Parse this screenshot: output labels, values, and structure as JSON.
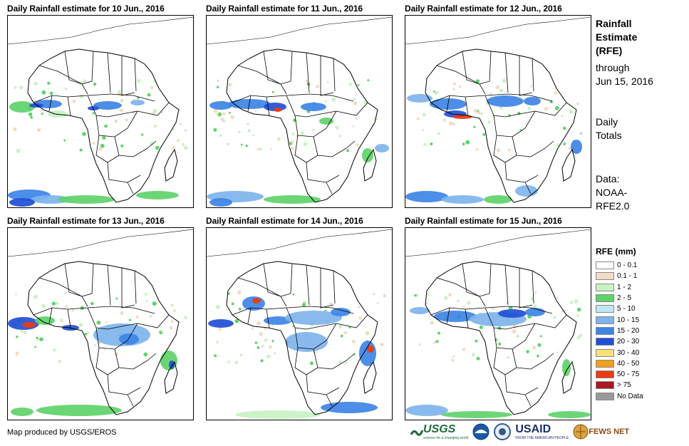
{
  "panels": [
    {
      "title": "Daily Rainfall estimate for 10 Jun., 2016"
    },
    {
      "title": "Daily Rainfall estimate for 11 Jun., 2016"
    },
    {
      "title": "Daily Rainfall estimate for 12 Jun., 2016"
    },
    {
      "title": "Daily Rainfall estimate for 13 Jun., 2016"
    },
    {
      "title": "Daily Rainfall estimate for 14 Jun., 2016"
    },
    {
      "title": "Daily Rainfall estimate for 15 Jun., 2016"
    }
  ],
  "sidebar": {
    "title_lines": [
      "Rainfall",
      "Estimate",
      "(RFE)"
    ],
    "through_label": "through",
    "through_date": "Jun 15, 2016",
    "daily_label": "Daily",
    "totals_label": "Totals",
    "data_label": "Data:",
    "data_source_1": "NOAA-",
    "data_source_2": "RFE2.0"
  },
  "legend": {
    "title": "RFE (mm)",
    "items": [
      {
        "label": "0 - 0.1",
        "color": "#ffffff"
      },
      {
        "label": "0.1 - 1",
        "color": "#f2dcc4"
      },
      {
        "label": "1 - 2",
        "color": "#c9f2c4"
      },
      {
        "label": "2 - 5",
        "color": "#5fd36a"
      },
      {
        "label": "5 - 10",
        "color": "#bfe8f6"
      },
      {
        "label": "10 - 15",
        "color": "#7fb4ec"
      },
      {
        "label": "15 - 20",
        "color": "#3d84e6"
      },
      {
        "label": "20 - 30",
        "color": "#1f4fd6"
      },
      {
        "label": "30 - 40",
        "color": "#fbe07a"
      },
      {
        "label": "40 - 50",
        "color": "#f3a11a"
      },
      {
        "label": "50 - 75",
        "color": "#ea3b12"
      },
      {
        "label": "> 75",
        "color": "#a8181e"
      },
      {
        "label": "No Data",
        "color": "#999999"
      }
    ]
  },
  "footer": {
    "credit": "Map produced by USGS/EROS"
  },
  "logos": {
    "usgs": "USGS",
    "usgs_tagline": "science for a changing world",
    "noaa": "NOAA",
    "usaid": "USAID",
    "usaid_tagline": "FROM THE AMERICAN PEOPLE",
    "fews": "FEWS NET"
  }
}
